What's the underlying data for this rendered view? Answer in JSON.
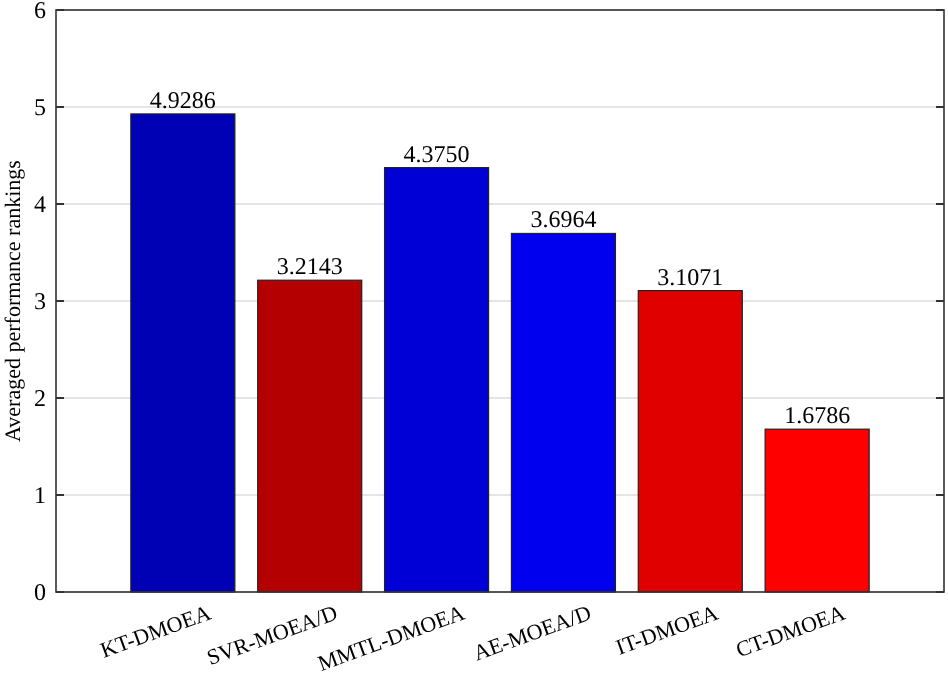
{
  "chart_data": {
    "type": "bar",
    "ylabel": "Averaged performance rankings",
    "categories": [
      "KT-DMOEA",
      "SVR-MOEA/D",
      "MMTL-DMOEA",
      "AE-MOEA/D",
      "IT-DMOEA",
      "CT-DMOEA"
    ],
    "values": [
      4.9286,
      3.2143,
      4.375,
      3.6964,
      3.1071,
      1.6786
    ],
    "value_labels": [
      "4.9286",
      "3.2143",
      "4.3750",
      "3.6964",
      "3.1071",
      "1.6786"
    ],
    "colors": [
      "#0000b4",
      "#b40000",
      "#0000d6",
      "#0000ee",
      "#e00000",
      "#ff0000"
    ],
    "ylim": [
      0,
      6
    ],
    "yticks": [
      0,
      1,
      2,
      3,
      4,
      5,
      6
    ],
    "grid": "y"
  }
}
